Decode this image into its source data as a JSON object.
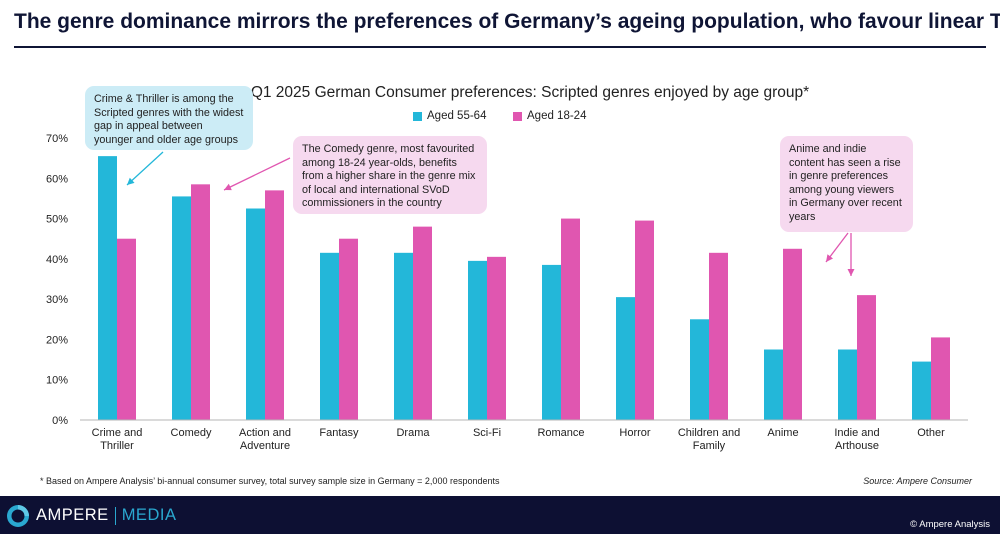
{
  "headline": "The genre dominance mirrors the preferences of Germany’s ageing population, who favour linear TV",
  "colors": {
    "series_1": "#23b7d9",
    "series_2": "#e056b0",
    "axis": "#b5b5b5",
    "navy": "#0d1033",
    "accent": "#2aa8d0"
  },
  "chart_data": {
    "type": "bar",
    "title": "Q1 2025 German Consumer preferences: Scripted genres enjoyed by age group*",
    "categories": [
      "Crime and Thriller",
      "Comedy",
      "Action and Adventure",
      "Fantasy",
      "Drama",
      "Sci-Fi",
      "Romance",
      "Horror",
      "Children and Family",
      "Anime",
      "Indie and Arthouse",
      "Other"
    ],
    "category_lines": [
      [
        "Crime and",
        "Thriller"
      ],
      [
        "Comedy"
      ],
      [
        "Action and",
        "Adventure"
      ],
      [
        "Fantasy"
      ],
      [
        "Drama"
      ],
      [
        "Sci-Fi"
      ],
      [
        "Romance"
      ],
      [
        "Horror"
      ],
      [
        "Children and",
        "Family"
      ],
      [
        "Anime"
      ],
      [
        "Indie and",
        "Arthouse"
      ],
      [
        "Other"
      ]
    ],
    "series": [
      {
        "name": "Aged 55-64",
        "values": [
          65.5,
          55.5,
          52.5,
          41.5,
          41.5,
          39.5,
          38.5,
          30.5,
          25.0,
          17.5,
          17.5,
          14.5
        ]
      },
      {
        "name": "Aged 18-24",
        "values": [
          45.0,
          58.5,
          57.0,
          45.0,
          48.0,
          40.5,
          50.0,
          49.5,
          41.5,
          42.5,
          31.0,
          20.5
        ]
      }
    ],
    "ylim": [
      0,
      70
    ],
    "yticks": [
      0,
      10,
      20,
      30,
      40,
      50,
      60,
      70
    ],
    "ytick_labels": [
      "0%",
      "10%",
      "20%",
      "30%",
      "40%",
      "50%",
      "60%",
      "70%"
    ],
    "legend_position": "top-center",
    "grid": false,
    "xlabel": "",
    "ylabel": ""
  },
  "callouts": {
    "crime": "Crime & Thriller is among the Scripted genres with the widest gap in appeal between younger and older age groups",
    "comedy": "The Comedy genre, most favourited among 18-24 year-olds, benefits from a higher share in the genre mix of local and international SVoD commissioners in the country",
    "anime": "Anime and indie content has seen a rise in genre preferences among young viewers in Germany over recent years"
  },
  "footnote": "* Based on Ampere Analysis’ bi-annual consumer survey, total survey sample size in Germany = 2,000 respondents",
  "source": "Source: Ampere Consumer",
  "footer": {
    "brand_main": "AMPERE",
    "brand_sub": "MEDIA",
    "copyright": "© Ampere Analysis"
  }
}
